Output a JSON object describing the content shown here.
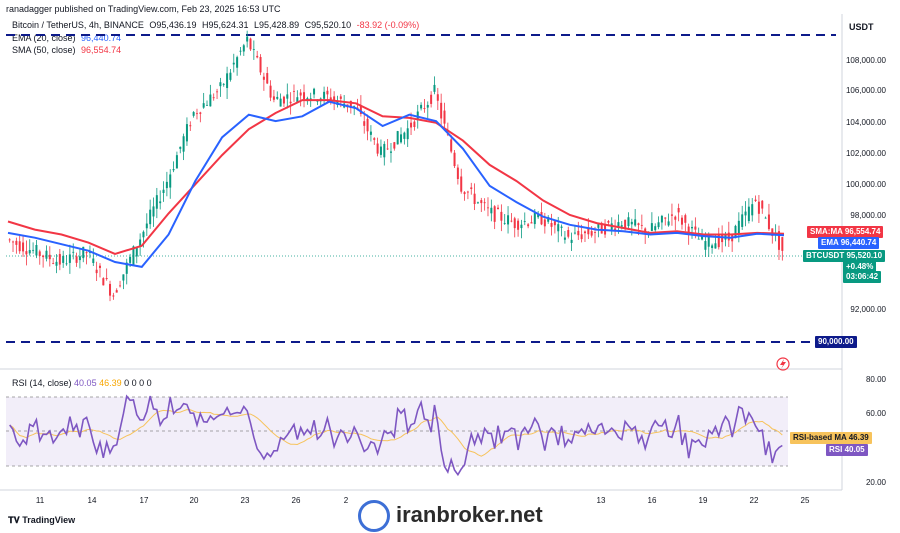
{
  "header": {
    "published": "ranadagger published on TradingView.com, Feb 23, 2025 16:53 UTC"
  },
  "legend": {
    "symbol": "Bitcoin / TetherUS, 4h, BINANCE",
    "open": "O95,436.19",
    "high": "H95,624.31",
    "low": "L95,428.89",
    "close": "C95,520.10",
    "change": "-83.92 (-0.09%)",
    "ema_label": "EMA (20, close)",
    "ema_value": "96,440.74",
    "sma_label": "SMA (50, close)",
    "sma_value": "96,554.74"
  },
  "price_axis": {
    "currency": "USDT",
    "ticks": [
      "108,000.00",
      "106,000.00",
      "104,000.00",
      "102,000.00",
      "100,000.00",
      "98,000.00",
      "92,000.00"
    ]
  },
  "tags": {
    "sma": {
      "name": "SMA:MA",
      "value": "96,554.74",
      "color": "#f23645"
    },
    "ema": {
      "name": "EMA",
      "value": "96,440.74",
      "color": "#2962ff"
    },
    "price": {
      "name": "BTCUSDT",
      "value": "95,520.10",
      "change": "+0.48%",
      "countdown": "03:06:42",
      "color": "#089981"
    },
    "support": {
      "value": "90,000.00",
      "color": "#0d1a8a"
    }
  },
  "rsi": {
    "label": "RSI (14, close)",
    "value": "40.05",
    "ma_value": "46.39",
    "zeros": "0  0  0  0",
    "ticks": [
      "80.00",
      "60.00",
      "20.00"
    ],
    "ma_tag_label": "RSI-based MA",
    "rsi_tag_label": "RSI",
    "line_color": "#7e57c2",
    "ma_color": "#f7c35c"
  },
  "time_axis": [
    "11",
    "14",
    "17",
    "20",
    "23",
    "26",
    "2",
    "13",
    "16",
    "19",
    "22",
    "25"
  ],
  "branding": {
    "tradingview": "TradingView",
    "watermark": "iranbroker.net"
  },
  "colors": {
    "up": "#089981",
    "down": "#f23645",
    "ema": "#2962ff",
    "sma": "#f23645",
    "dashed": "#0d1a8a"
  },
  "chart_data": {
    "type": "candlestick",
    "title": "Bitcoin / TetherUS, 4h, BINANCE",
    "x_ticks": [
      "11",
      "14",
      "17",
      "20",
      "23",
      "26",
      "2",
      "13",
      "16",
      "19",
      "22",
      "25"
    ],
    "ylim": [
      88500,
      109500
    ],
    "horizontal_levels": [
      109300,
      90000
    ],
    "series": [
      {
        "name": "EMA (20, close)",
        "values": [
          96600,
          96300,
          95900,
          95500,
          94800,
          94500,
          96500,
          99800,
          102500,
          103900,
          103500,
          103800,
          104700,
          104300,
          103200,
          103900,
          103500,
          101800,
          99500,
          98500,
          97600,
          97100,
          96800,
          96700,
          96500,
          96600,
          96400,
          96300,
          96550,
          96450
        ]
      },
      {
        "name": "SMA (50, close)",
        "values": [
          97300,
          96800,
          96500,
          96000,
          95300,
          95800,
          97800,
          99600,
          101400,
          103000,
          104000,
          104800,
          104800,
          104600,
          103800,
          103700,
          103400,
          102300,
          100800,
          99800,
          98600,
          97700,
          97200,
          96900,
          96600,
          96700,
          96500,
          96500,
          96600,
          96550
        ]
      }
    ],
    "close_path": [
      96200,
      95500,
      94800,
      95400,
      92800,
      96300,
      99800,
      104000,
      105500,
      108500,
      104800,
      105200,
      105000,
      104400,
      101500,
      103000,
      105300,
      99500,
      97900,
      97200,
      97500,
      96300,
      96700,
      97300,
      96700,
      97800,
      96000,
      96200,
      98600,
      95520
    ]
  }
}
